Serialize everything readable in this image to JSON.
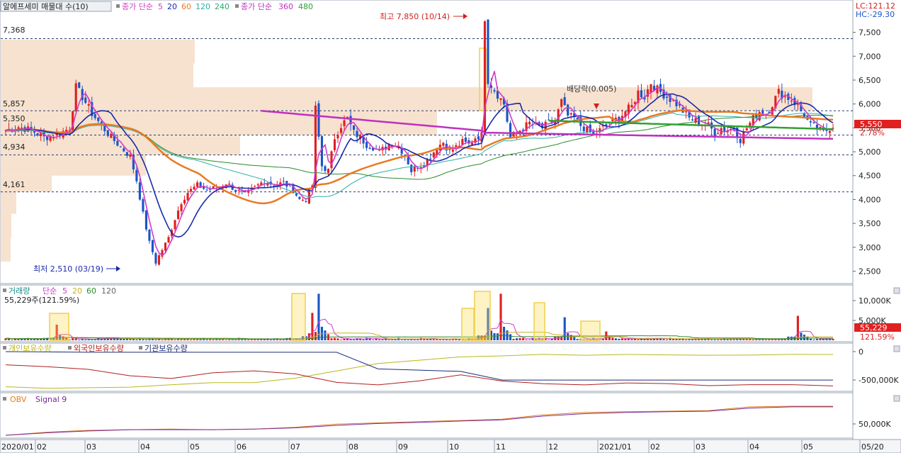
{
  "legend_price": {
    "title": "알에프세미 매물대 수(10)",
    "ma_label": "종가 단순",
    "ma_periods": [
      "5",
      "20",
      "60",
      "120",
      "240"
    ],
    "ma2_label": "종가 단순",
    "ma2_periods": [
      "360",
      "480"
    ]
  },
  "legend_volume": {
    "title": "거래량",
    "ma_label": "단순",
    "ma_periods": [
      "5",
      "20",
      "60",
      "120"
    ],
    "current": "55,229주(121.59%)"
  },
  "legend_holdings": {
    "items": [
      "개인보유수량",
      "외국인보유수량",
      "기관보유수량"
    ]
  },
  "legend_obv": {
    "items": [
      "OBV",
      "Signal 9"
    ]
  },
  "top_right": {
    "lc": "LC:121.12",
    "hc": "HC:-29.30"
  },
  "price_badges": {
    "last": "5,550",
    "change": "2.78%"
  },
  "volume_badges": {
    "last": "55,229",
    "change": "121.59%"
  },
  "annotations": {
    "high": "최고 7,850 (10/14)",
    "low": "최저 2,510 (03/19)",
    "dividend": "배당락(0.005)"
  },
  "level_labels": [
    "7,368",
    "5,857",
    "5,350",
    "4,934",
    "4,161"
  ],
  "colors": {
    "up": "#e02020",
    "down": "#1a55c8",
    "ma5": "#d23bc8",
    "ma20": "#1a2aa8",
    "ma60": "#e87a22",
    "ma120": "#30b0a0",
    "ma240": "#2a8a2a",
    "ma360": "#c030c0",
    "ma480": "#30a030",
    "profile": "#f6e2cf",
    "highlight": "#f0d04a"
  },
  "chart_data": [
    {
      "type": "candlestick",
      "title": "알에프세미 매물대 수(10)",
      "y_axis": {
        "min": 2300,
        "max": 7850,
        "ticks": [
          "7,500",
          "7,000",
          "6,500",
          "6,000",
          "5,500",
          "5,000",
          "4,500",
          "4,000",
          "3,500",
          "3,000",
          "2,500"
        ]
      },
      "x_axis": {
        "labels": [
          "2020/01",
          "02",
          "03",
          "04",
          "05",
          "06",
          "07",
          "08",
          "09",
          "10",
          "11",
          "12",
          "2021/01",
          "02",
          "03",
          "04",
          "05",
          "05/20"
        ]
      },
      "reference_levels": [
        7368,
        5857,
        5350,
        4934,
        4161
      ],
      "close_path": [
        [
          0,
          5450
        ],
        [
          4,
          5520
        ],
        [
          8,
          5450
        ],
        [
          12,
          5300
        ],
        [
          16,
          5350
        ],
        [
          20,
          5500
        ],
        [
          22,
          6350
        ],
        [
          24,
          6150
        ],
        [
          27,
          5800
        ],
        [
          30,
          5550
        ],
        [
          33,
          5300
        ],
        [
          36,
          5100
        ],
        [
          39,
          4900
        ],
        [
          41,
          4400
        ],
        [
          43,
          3700
        ],
        [
          45,
          3100
        ],
        [
          47,
          2700
        ],
        [
          49,
          2950
        ],
        [
          51,
          3200
        ],
        [
          53,
          3600
        ],
        [
          55,
          3950
        ],
        [
          57,
          4150
        ],
        [
          60,
          4300
        ],
        [
          63,
          4200
        ],
        [
          66,
          4250
        ],
        [
          69,
          4350
        ],
        [
          72,
          4200
        ],
        [
          75,
          4100
        ],
        [
          78,
          4250
        ],
        [
          81,
          4400
        ],
        [
          84,
          4300
        ],
        [
          87,
          4350
        ],
        [
          90,
          4200
        ],
        [
          92,
          4000
        ],
        [
          94,
          4000
        ],
        [
          96,
          4300
        ],
        [
          97,
          5900
        ],
        [
          99,
          4700
        ],
        [
          101,
          4600
        ],
        [
          103,
          5300
        ],
        [
          105,
          5550
        ],
        [
          107,
          5700
        ],
        [
          109,
          5400
        ],
        [
          111,
          5300
        ],
        [
          113,
          5150
        ],
        [
          115,
          5100
        ],
        [
          117,
          5000
        ],
        [
          119,
          5100
        ],
        [
          121,
          5200
        ],
        [
          123,
          5100
        ],
        [
          125,
          4950
        ],
        [
          127,
          4600
        ],
        [
          129,
          4700
        ],
        [
          131,
          4750
        ],
        [
          133,
          4900
        ],
        [
          135,
          5100
        ],
        [
          137,
          5200
        ],
        [
          139,
          5000
        ],
        [
          141,
          5100
        ],
        [
          143,
          5200
        ],
        [
          145,
          5150
        ],
        [
          147,
          5300
        ],
        [
          149,
          5350
        ],
        [
          150,
          7850
        ],
        [
          151,
          6500
        ],
        [
          152,
          6400
        ],
        [
          154,
          6200
        ],
        [
          156,
          6000
        ],
        [
          158,
          5300
        ],
        [
          160,
          5400
        ],
        [
          162,
          5500
        ],
        [
          164,
          5600
        ],
        [
          166,
          5550
        ],
        [
          168,
          5500
        ],
        [
          170,
          5600
        ],
        [
          172,
          5650
        ],
        [
          174,
          6050
        ],
        [
          176,
          5750
        ],
        [
          178,
          5700
        ],
        [
          180,
          5550
        ],
        [
          182,
          5450
        ],
        [
          184,
          5350
        ],
        [
          186,
          5450
        ],
        [
          188,
          5550
        ],
        [
          190,
          5650
        ],
        [
          192,
          5700
        ],
        [
          194,
          5850
        ],
        [
          196,
          5950
        ],
        [
          198,
          6250
        ],
        [
          200,
          6150
        ],
        [
          202,
          6450
        ],
        [
          204,
          6300
        ],
        [
          206,
          6200
        ],
        [
          208,
          6100
        ],
        [
          210,
          6000
        ],
        [
          212,
          5850
        ],
        [
          214,
          5700
        ],
        [
          216,
          5650
        ],
        [
          218,
          5600
        ],
        [
          220,
          5550
        ],
        [
          222,
          5400
        ],
        [
          224,
          5500
        ],
        [
          226,
          5450
        ],
        [
          228,
          5500
        ],
        [
          230,
          5250
        ],
        [
          232,
          5500
        ],
        [
          234,
          5700
        ],
        [
          236,
          5850
        ],
        [
          238,
          5800
        ],
        [
          240,
          6000
        ],
        [
          242,
          6250
        ],
        [
          244,
          6150
        ],
        [
          246,
          6100
        ],
        [
          248,
          5950
        ],
        [
          250,
          5750
        ],
        [
          252,
          5550
        ],
        [
          254,
          5500
        ],
        [
          256,
          5400
        ],
        [
          258,
          5500
        ],
        [
          259,
          5550
        ]
      ],
      "high": {
        "value": 7850,
        "date": "10/14"
      },
      "low": {
        "value": 2510,
        "date": "03/19"
      },
      "last": {
        "value": 5550,
        "change_pct": 2.78
      }
    },
    {
      "type": "bar",
      "title": "거래량",
      "y_axis": {
        "ticks": [
          "10,000K",
          "5,000K"
        ]
      },
      "spikes": [
        [
          16,
          3200
        ],
        [
          96,
          5600
        ],
        [
          98,
          9500
        ],
        [
          151,
          6600
        ],
        [
          155,
          9500
        ],
        [
          175,
          4700
        ],
        [
          188,
          1800
        ],
        [
          248,
          5000
        ]
      ],
      "last": {
        "value": 55229,
        "change_pct": 121.59
      }
    },
    {
      "type": "line",
      "title": "수급",
      "series": [
        {
          "name": "개인보유수량",
          "y": [
            -560000,
            -580000,
            -600000,
            -560000,
            -540000,
            -520000,
            -500000,
            -450000,
            -300000,
            -200000,
            -150000,
            -100000,
            -60000,
            -40000,
            -60000,
            -50000,
            -40000,
            -60000,
            -40000,
            -50000,
            -40000
          ]
        },
        {
          "name": "외국인보유수량",
          "y": [
            -200000,
            -230000,
            -280000,
            -380000,
            -420000,
            -360000,
            -320000,
            -380000,
            -500000,
            -520000,
            -460000,
            -380000,
            -480000,
            -500000,
            -540000,
            -520000,
            -500000,
            -560000,
            -520000,
            -540000,
            -560000
          ]
        },
        {
          "name": "기관보유수량",
          "y": [
            0,
            -5000,
            -10000,
            -10000,
            -10000,
            -10000,
            -10000,
            -10000,
            -10000,
            -280000,
            -300000,
            -320000,
            -460000,
            -460000,
            -460000,
            -460000,
            -460000,
            -460000,
            -460000,
            -460000,
            -460000
          ]
        }
      ],
      "y_axis": {
        "ticks": [
          "0",
          "-500,000K"
        ]
      }
    },
    {
      "type": "line",
      "title": "OBV",
      "series": [
        {
          "name": "OBV",
          "y": [
            0,
            5,
            8,
            9,
            10,
            9,
            10,
            13,
            18,
            20,
            22,
            24,
            26,
            33,
            37,
            38,
            39,
            40,
            46,
            47,
            47
          ]
        },
        {
          "name": "Signal 9",
          "y": [
            0,
            4,
            7,
            9,
            9,
            9,
            10,
            12,
            16,
            19,
            21,
            23,
            25,
            31,
            35,
            37,
            38,
            39,
            44,
            46,
            46
          ]
        }
      ],
      "y_axis": {
        "ticks": [
          "50,000K"
        ]
      }
    }
  ]
}
